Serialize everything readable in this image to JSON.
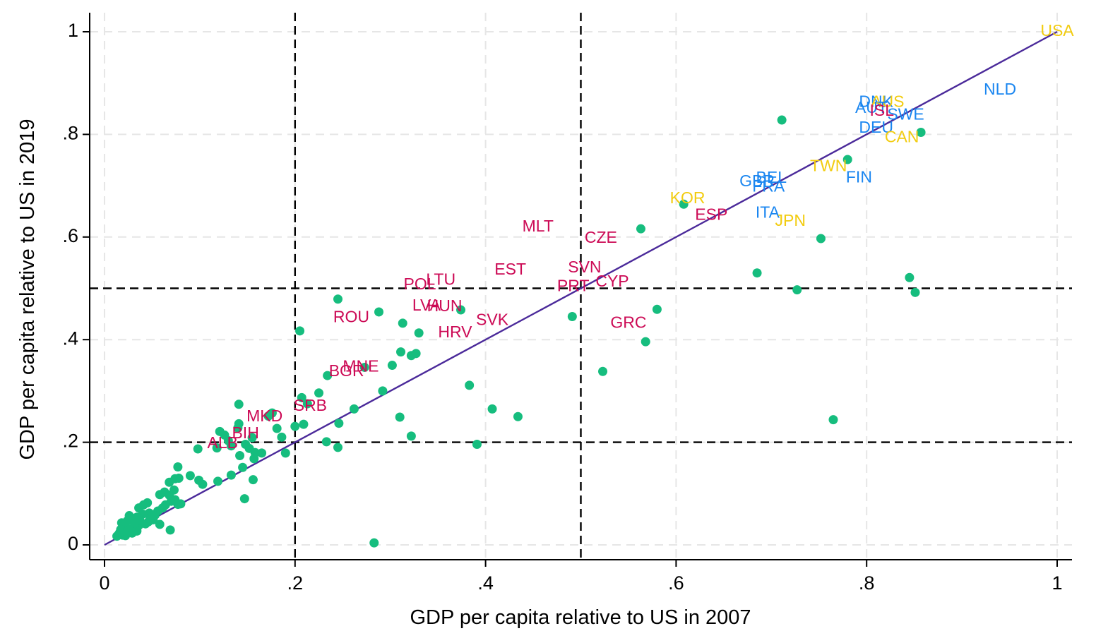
{
  "colors": {
    "background": "#ffffff",
    "grid": "#e6e6e6",
    "axis": "#000000",
    "point": "#16bd7e",
    "fit_line": "#4b2a9a",
    "ref_line": "#000000",
    "group_colors": {
      "red": "#cc0a55",
      "blue": "#1a86f0",
      "yellow": "#f2cc10"
    }
  },
  "chart_data": {
    "type": "scatter",
    "title": "",
    "xlabel": "GDP per capita relative to US in 2007",
    "ylabel": "GDP per capita relative to US in 2019",
    "xlim": [
      0,
      1
    ],
    "ylim": [
      0,
      1
    ],
    "xticks": [
      {
        "value": 0,
        "label": "0"
      },
      {
        "value": 0.2,
        "label": ".2"
      },
      {
        "value": 0.4,
        "label": ".4"
      },
      {
        "value": 0.6,
        "label": ".6"
      },
      {
        "value": 0.8,
        "label": ".8"
      },
      {
        "value": 1,
        "label": "1"
      }
    ],
    "yticks": [
      {
        "value": 0,
        "label": "0"
      },
      {
        "value": 0.2,
        "label": ".2"
      },
      {
        "value": 0.4,
        "label": ".4"
      },
      {
        "value": 0.6,
        "label": ".6"
      },
      {
        "value": 0.8,
        "label": ".8"
      },
      {
        "value": 1,
        "label": "1"
      }
    ],
    "grid": true,
    "fit_line": {
      "x": [
        0,
        1
      ],
      "y": [
        0,
        1
      ]
    },
    "reference_lines": {
      "vertical": [
        0.2,
        0.5
      ],
      "horizontal": [
        0.2,
        0.5
      ]
    },
    "labeled_points": [
      {
        "label": "USA",
        "x": 1.0,
        "y": 1.0,
        "group": "yellow"
      },
      {
        "label": "NLD",
        "x": 0.94,
        "y": 0.886,
        "group": "blue"
      },
      {
        "label": "DNK",
        "x": 0.81,
        "y": 0.862,
        "group": "blue"
      },
      {
        "label": "AUS",
        "x": 0.822,
        "y": 0.862,
        "group": "yellow"
      },
      {
        "label": "AUT",
        "x": 0.805,
        "y": 0.85,
        "group": "blue"
      },
      {
        "label": "ISL",
        "x": 0.816,
        "y": 0.845,
        "group": "red"
      },
      {
        "label": "SWE",
        "x": 0.841,
        "y": 0.837,
        "group": "blue"
      },
      {
        "label": "DEU",
        "x": 0.81,
        "y": 0.812,
        "group": "blue"
      },
      {
        "label": "CAN",
        "x": 0.837,
        "y": 0.793,
        "group": "yellow"
      },
      {
        "label": "TWN",
        "x": 0.76,
        "y": 0.737,
        "group": "yellow"
      },
      {
        "label": "FIN",
        "x": 0.792,
        "y": 0.715,
        "group": "blue"
      },
      {
        "label": "GBR",
        "x": 0.685,
        "y": 0.707,
        "group": "blue"
      },
      {
        "label": "BEL",
        "x": 0.7,
        "y": 0.714,
        "group": "blue"
      },
      {
        "label": "FRA",
        "x": 0.697,
        "y": 0.697,
        "group": "blue"
      },
      {
        "label": "KOR",
        "x": 0.612,
        "y": 0.674,
        "group": "yellow"
      },
      {
        "label": "ESP",
        "x": 0.637,
        "y": 0.642,
        "group": "red"
      },
      {
        "label": "ITA",
        "x": 0.696,
        "y": 0.646,
        "group": "blue"
      },
      {
        "label": "JPN",
        "x": 0.72,
        "y": 0.63,
        "group": "yellow"
      },
      {
        "label": "MLT",
        "x": 0.455,
        "y": 0.619,
        "group": "red"
      },
      {
        "label": "CZE",
        "x": 0.521,
        "y": 0.597,
        "group": "red"
      },
      {
        "label": "EST",
        "x": 0.426,
        "y": 0.535,
        "group": "red"
      },
      {
        "label": "SVN",
        "x": 0.504,
        "y": 0.539,
        "group": "red"
      },
      {
        "label": "LTU",
        "x": 0.353,
        "y": 0.515,
        "group": "red"
      },
      {
        "label": "POL",
        "x": 0.331,
        "y": 0.506,
        "group": "red"
      },
      {
        "label": "CYP",
        "x": 0.533,
        "y": 0.512,
        "group": "red"
      },
      {
        "label": "PRT",
        "x": 0.492,
        "y": 0.503,
        "group": "red"
      },
      {
        "label": "LVA",
        "x": 0.338,
        "y": 0.465,
        "group": "red"
      },
      {
        "label": "HUN",
        "x": 0.357,
        "y": 0.464,
        "group": "red"
      },
      {
        "label": "ROU",
        "x": 0.259,
        "y": 0.442,
        "group": "red"
      },
      {
        "label": "SVK",
        "x": 0.407,
        "y": 0.437,
        "group": "red"
      },
      {
        "label": "HRV",
        "x": 0.368,
        "y": 0.413,
        "group": "red"
      },
      {
        "label": "GRC",
        "x": 0.55,
        "y": 0.431,
        "group": "red"
      },
      {
        "label": "MNE",
        "x": 0.269,
        "y": 0.346,
        "group": "red"
      },
      {
        "label": "BGR",
        "x": 0.254,
        "y": 0.337,
        "group": "red"
      },
      {
        "label": "SRB",
        "x": 0.216,
        "y": 0.27,
        "group": "red"
      },
      {
        "label": "MKD",
        "x": 0.168,
        "y": 0.249,
        "group": "red"
      },
      {
        "label": "BIH",
        "x": 0.148,
        "y": 0.216,
        "group": "red"
      },
      {
        "label": "ALB",
        "x": 0.124,
        "y": 0.197,
        "group": "red"
      }
    ],
    "points": [
      [
        0.711,
        0.828
      ],
      [
        0.78,
        0.751
      ],
      [
        0.857,
        0.804
      ],
      [
        0.608,
        0.664
      ],
      [
        0.563,
        0.616
      ],
      [
        0.752,
        0.597
      ],
      [
        0.685,
        0.53
      ],
      [
        0.727,
        0.497
      ],
      [
        0.845,
        0.521
      ],
      [
        0.851,
        0.492
      ],
      [
        0.491,
        0.445
      ],
      [
        0.58,
        0.459
      ],
      [
        0.568,
        0.396
      ],
      [
        0.523,
        0.338
      ],
      [
        0.765,
        0.244
      ],
      [
        0.245,
        0.479
      ],
      [
        0.288,
        0.454
      ],
      [
        0.374,
        0.458
      ],
      [
        0.205,
        0.417
      ],
      [
        0.313,
        0.432
      ],
      [
        0.33,
        0.413
      ],
      [
        0.311,
        0.376
      ],
      [
        0.322,
        0.369
      ],
      [
        0.327,
        0.373
      ],
      [
        0.302,
        0.35
      ],
      [
        0.273,
        0.346
      ],
      [
        0.234,
        0.33
      ],
      [
        0.383,
        0.311
      ],
      [
        0.292,
        0.3
      ],
      [
        0.225,
        0.296
      ],
      [
        0.207,
        0.287
      ],
      [
        0.213,
        0.275
      ],
      [
        0.262,
        0.265
      ],
      [
        0.407,
        0.265
      ],
      [
        0.434,
        0.25
      ],
      [
        0.31,
        0.249
      ],
      [
        0.246,
        0.237
      ],
      [
        0.209,
        0.235
      ],
      [
        0.2,
        0.231
      ],
      [
        0.322,
        0.212
      ],
      [
        0.233,
        0.201
      ],
      [
        0.245,
        0.19
      ],
      [
        0.391,
        0.196
      ],
      [
        0.141,
        0.274
      ],
      [
        0.172,
        0.251
      ],
      [
        0.176,
        0.257
      ],
      [
        0.181,
        0.227
      ],
      [
        0.141,
        0.236
      ],
      [
        0.14,
        0.228
      ],
      [
        0.186,
        0.21
      ],
      [
        0.19,
        0.179
      ],
      [
        0.155,
        0.209
      ],
      [
        0.148,
        0.196
      ],
      [
        0.152,
        0.188
      ],
      [
        0.142,
        0.174
      ],
      [
        0.157,
        0.168
      ],
      [
        0.145,
        0.151
      ],
      [
        0.121,
        0.221
      ],
      [
        0.126,
        0.214
      ],
      [
        0.13,
        0.203
      ],
      [
        0.133,
        0.193
      ],
      [
        0.118,
        0.189
      ],
      [
        0.119,
        0.124
      ],
      [
        0.133,
        0.136
      ],
      [
        0.147,
        0.09
      ],
      [
        0.156,
        0.127
      ],
      [
        0.158,
        0.18
      ],
      [
        0.165,
        0.179
      ],
      [
        0.098,
        0.187
      ],
      [
        0.103,
        0.118
      ],
      [
        0.077,
        0.152
      ],
      [
        0.09,
        0.135
      ],
      [
        0.099,
        0.126
      ],
      [
        0.078,
        0.13
      ],
      [
        0.068,
        0.122
      ],
      [
        0.074,
        0.129
      ],
      [
        0.073,
        0.107
      ],
      [
        0.063,
        0.103
      ],
      [
        0.058,
        0.098
      ],
      [
        0.068,
        0.097
      ],
      [
        0.07,
        0.085
      ],
      [
        0.074,
        0.088
      ],
      [
        0.077,
        0.079
      ],
      [
        0.08,
        0.08
      ],
      [
        0.069,
        0.029
      ],
      [
        0.283,
        0.004
      ],
      [
        0.047,
        0.062
      ],
      [
        0.051,
        0.049
      ],
      [
        0.058,
        0.04
      ],
      [
        0.045,
        0.082
      ],
      [
        0.041,
        0.078
      ],
      [
        0.036,
        0.072
      ],
      [
        0.04,
        0.06
      ],
      [
        0.034,
        0.054
      ],
      [
        0.031,
        0.045
      ],
      [
        0.026,
        0.057
      ],
      [
        0.024,
        0.047
      ],
      [
        0.021,
        0.038
      ],
      [
        0.018,
        0.043
      ],
      [
        0.017,
        0.03
      ],
      [
        0.015,
        0.021
      ],
      [
        0.013,
        0.017
      ],
      [
        0.019,
        0.019
      ],
      [
        0.023,
        0.026
      ],
      [
        0.027,
        0.031
      ],
      [
        0.029,
        0.023
      ],
      [
        0.034,
        0.027
      ],
      [
        0.036,
        0.038
      ],
      [
        0.043,
        0.041
      ],
      [
        0.048,
        0.052
      ],
      [
        0.053,
        0.058
      ],
      [
        0.056,
        0.066
      ],
      [
        0.061,
        0.072
      ],
      [
        0.064,
        0.078
      ],
      [
        0.032,
        0.042
      ],
      [
        0.037,
        0.048
      ],
      [
        0.046,
        0.045
      ],
      [
        0.051,
        0.059
      ],
      [
        0.022,
        0.018
      ],
      [
        0.016,
        0.024
      ]
    ]
  }
}
